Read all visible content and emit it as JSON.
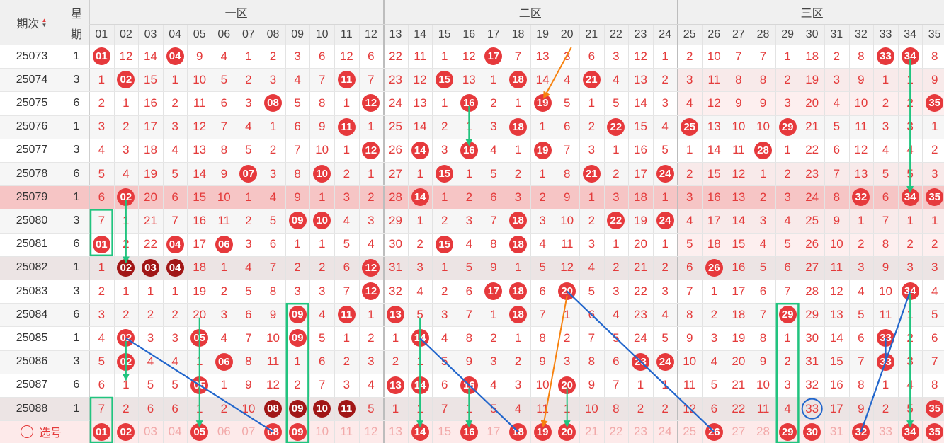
{
  "header": {
    "period_label": "期次",
    "weekday_label_1": "星",
    "weekday_label_2": "期",
    "zones": [
      "一区",
      "二区",
      "三区"
    ],
    "columns": [
      "01",
      "02",
      "03",
      "04",
      "05",
      "06",
      "07",
      "08",
      "09",
      "10",
      "11",
      "12",
      "13",
      "14",
      "15",
      "16",
      "17",
      "18",
      "19",
      "20",
      "21",
      "22",
      "23",
      "24",
      "25",
      "26",
      "27",
      "28",
      "29",
      "30",
      "31",
      "32",
      "33",
      "34",
      "35"
    ]
  },
  "rows": [
    {
      "issue": "25073",
      "wk": "1",
      "cells": [
        0,
        12,
        14,
        0,
        9,
        4,
        1,
        2,
        3,
        6,
        12,
        6,
        22,
        11,
        1,
        12,
        0,
        7,
        13,
        3,
        6,
        3,
        12,
        1,
        2,
        10,
        7,
        7,
        1,
        18,
        2,
        8,
        0,
        0,
        8
      ]
    },
    {
      "issue": "25074",
      "wk": "3",
      "cells": [
        1,
        0,
        15,
        1,
        10,
        5,
        2,
        3,
        4,
        7,
        0,
        7,
        23,
        12,
        0,
        13,
        1,
        0,
        14,
        4,
        0,
        4,
        13,
        2,
        3,
        11,
        8,
        8,
        2,
        19,
        3,
        9,
        1,
        1,
        9
      ]
    },
    {
      "issue": "25075",
      "wk": "6",
      "cells": [
        2,
        1,
        16,
        2,
        11,
        6,
        3,
        0,
        5,
        8,
        1,
        0,
        24,
        13,
        1,
        0,
        2,
        1,
        0,
        5,
        1,
        5,
        14,
        3,
        4,
        12,
        9,
        9,
        3,
        20,
        4,
        10,
        2,
        2,
        0
      ]
    },
    {
      "issue": "25076",
      "wk": "1",
      "cells": [
        3,
        2,
        17,
        3,
        12,
        7,
        4,
        1,
        6,
        9,
        0,
        1,
        25,
        14,
        2,
        1,
        3,
        0,
        1,
        6,
        2,
        0,
        15,
        4,
        0,
        13,
        10,
        10,
        0,
        21,
        5,
        11,
        3,
        3,
        1
      ]
    },
    {
      "issue": "25077",
      "wk": "3",
      "cells": [
        4,
        3,
        18,
        4,
        13,
        8,
        5,
        2,
        7,
        10,
        1,
        0,
        26,
        0,
        3,
        0,
        4,
        1,
        0,
        7,
        3,
        1,
        16,
        5,
        1,
        14,
        11,
        0,
        1,
        22,
        6,
        12,
        4,
        4,
        2
      ]
    },
    {
      "issue": "25078",
      "wk": "6",
      "cells": [
        5,
        4,
        19,
        5,
        14,
        9,
        0,
        3,
        8,
        0,
        2,
        1,
        27,
        1,
        0,
        1,
        5,
        2,
        1,
        8,
        0,
        2,
        17,
        0,
        2,
        15,
        12,
        1,
        2,
        23,
        7,
        13,
        5,
        5,
        3
      ]
    },
    {
      "issue": "25079",
      "wk": "1",
      "cells": [
        6,
        0,
        20,
        6,
        15,
        10,
        1,
        4,
        9,
        1,
        3,
        2,
        28,
        0,
        1,
        2,
        6,
        3,
        2,
        9,
        1,
        3,
        18,
        1,
        3,
        16,
        13,
        2,
        3,
        24,
        8,
        0,
        6,
        0,
        0
      ]
    },
    {
      "issue": "25080",
      "wk": "3",
      "cells": [
        7,
        1,
        21,
        7,
        16,
        11,
        2,
        5,
        0,
        0,
        4,
        3,
        29,
        1,
        2,
        3,
        7,
        0,
        3,
        10,
        2,
        0,
        19,
        0,
        4,
        17,
        14,
        3,
        4,
        25,
        9,
        1,
        7,
        1,
        1
      ]
    },
    {
      "issue": "25081",
      "wk": "6",
      "cells": [
        0,
        2,
        22,
        0,
        17,
        0,
        3,
        6,
        1,
        1,
        5,
        4,
        30,
        2,
        0,
        4,
        8,
        0,
        4,
        11,
        3,
        1,
        20,
        1,
        5,
        18,
        15,
        4,
        5,
        26,
        10,
        2,
        8,
        2,
        2
      ]
    },
    {
      "issue": "25082",
      "wk": "1",
      "cells": [
        1,
        0,
        0,
        0,
        18,
        1,
        4,
        7,
        2,
        2,
        6,
        0,
        31,
        3,
        1,
        5,
        9,
        1,
        5,
        12,
        4,
        2,
        21,
        2,
        6,
        0,
        16,
        5,
        6,
        27,
        11,
        3,
        9,
        3,
        3
      ]
    },
    {
      "issue": "25083",
      "wk": "3",
      "cells": [
        2,
        1,
        1,
        1,
        19,
        2,
        5,
        8,
        3,
        3,
        7,
        0,
        32,
        4,
        2,
        6,
        0,
        0,
        6,
        0,
        5,
        3,
        22,
        3,
        7,
        1,
        17,
        6,
        7,
        28,
        12,
        4,
        10,
        0,
        4
      ]
    },
    {
      "issue": "25084",
      "wk": "6",
      "cells": [
        3,
        2,
        2,
        2,
        20,
        3,
        6,
        9,
        0,
        4,
        0,
        1,
        0,
        5,
        3,
        7,
        1,
        0,
        7,
        1,
        6,
        4,
        23,
        4,
        8,
        2,
        18,
        7,
        0,
        29,
        13,
        5,
        11,
        1,
        5
      ]
    },
    {
      "issue": "25085",
      "wk": "1",
      "cells": [
        4,
        0,
        3,
        3,
        0,
        4,
        7,
        10,
        0,
        5,
        1,
        2,
        1,
        0,
        4,
        8,
        2,
        1,
        8,
        2,
        7,
        5,
        24,
        5,
        9,
        3,
        19,
        8,
        1,
        30,
        14,
        6,
        0,
        2,
        6
      ]
    },
    {
      "issue": "25086",
      "wk": "3",
      "cells": [
        5,
        0,
        4,
        4,
        1,
        0,
        8,
        11,
        1,
        6,
        2,
        3,
        2,
        1,
        5,
        9,
        3,
        2,
        9,
        3,
        8,
        6,
        0,
        0,
        10,
        4,
        20,
        9,
        2,
        31,
        15,
        7,
        0,
        3,
        7
      ]
    },
    {
      "issue": "25087",
      "wk": "6",
      "cells": [
        6,
        1,
        5,
        5,
        0,
        1,
        9,
        12,
        2,
        7,
        3,
        4,
        0,
        0,
        6,
        0,
        4,
        3,
        10,
        0,
        9,
        7,
        1,
        1,
        11,
        5,
        21,
        10,
        3,
        32,
        16,
        8,
        1,
        4,
        8
      ]
    },
    {
      "issue": "25088",
      "wk": "1",
      "cells": [
        7,
        2,
        6,
        6,
        1,
        2,
        10,
        0,
        0,
        0,
        0,
        5,
        1,
        1,
        7,
        1,
        5,
        4,
        11,
        1,
        10,
        8,
        2,
        2,
        12,
        6,
        22,
        11,
        4,
        33,
        17,
        9,
        2,
        5,
        0
      ]
    }
  ],
  "select_row": {
    "label": "选号",
    "cells": [
      "01",
      "02",
      "03",
      "04",
      "05",
      "06",
      "07",
      "08",
      "09",
      "10",
      "11",
      "12",
      "13",
      "14",
      "15",
      "16",
      "17",
      "18",
      "19",
      "20",
      "21",
      "22",
      "23",
      "24",
      "25",
      "26",
      "27",
      "28",
      "29",
      "30",
      "31",
      "32",
      "33",
      "34",
      "35"
    ],
    "selected": [
      1,
      2,
      5,
      8,
      9,
      14,
      16,
      18,
      19,
      20,
      26,
      29,
      30,
      32,
      34,
      35
    ]
  },
  "dark_balls": [
    [
      9,
      2
    ],
    [
      9,
      3
    ],
    [
      9,
      4
    ],
    [
      15,
      8
    ],
    [
      15,
      9
    ],
    [
      15,
      10
    ],
    [
      15,
      11
    ]
  ],
  "colors": {
    "ball_red": "#e6393c",
    "ball_dark": "#a11616",
    "line_blue": "#2266cc",
    "line_green": "#21c47f",
    "line_orange": "#f7820f",
    "highlight_row": "#f6c5c5"
  },
  "icons": [
    "sort-icon",
    "radio-circle-icon"
  ]
}
